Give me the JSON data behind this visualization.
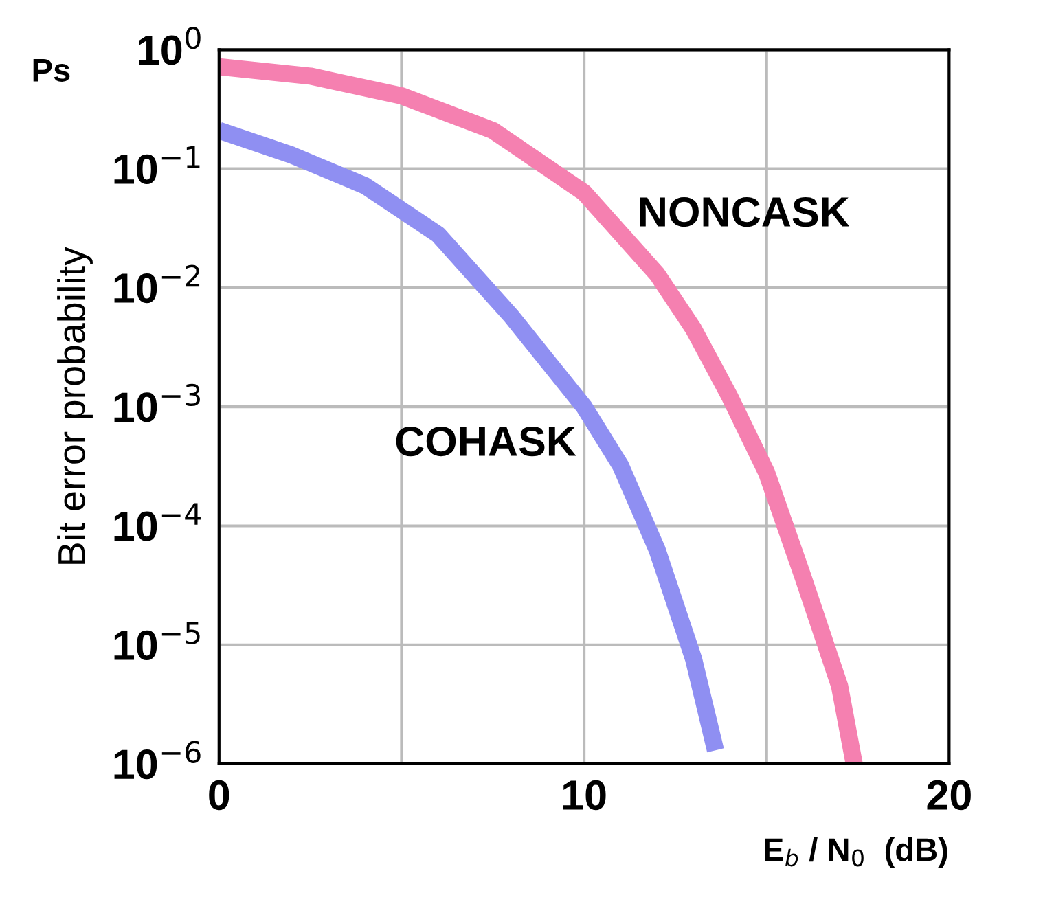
{
  "chart_data": {
    "type": "line",
    "xlabel": "E$_{b}$ / N$_{0}$  (dB)",
    "ylabel": "Bit error probability",
    "annotations": [
      "Ps"
    ],
    "log": "y",
    "grid": true,
    "line_style": "solid",
    "marker": "none",
    "xlim": [
      0,
      20
    ],
    "xticks": [
      0,
      {
        "value": 5,
        "label": null
      },
      10,
      {
        "value": 15,
        "label": null
      },
      20
    ],
    "ylim": [
      1e-06,
      1
    ],
    "yticks": [
      {
        "value": 1,
        "label": "10$^{0}$"
      },
      {
        "value": 0.1,
        "label": "10$^{−1}$"
      },
      {
        "value": 0.01,
        "label": "10$^{−2}$"
      },
      {
        "value": 0.001,
        "label": "10$^{−3}$"
      },
      {
        "value": 0.0001,
        "label": "10$^{−4}$"
      },
      {
        "value": 1e-05,
        "label": "10$^{−5}$"
      },
      {
        "value": 1e-06,
        "label": "10$^{−6}$"
      }
    ],
    "series": [
      {
        "name": "NONCASK",
        "color": "#f580b0",
        "x": [
          0,
          2.5,
          5,
          7.5,
          10,
          12,
          13,
          14,
          15,
          16,
          17,
          17.4
        ],
        "values": [
          0.72,
          0.6,
          0.41,
          0.21,
          0.063,
          0.013,
          0.0045,
          0.0012,
          0.00028,
          3.7e-05,
          4.5e-06,
          1e-06
        ]
      },
      {
        "name": "COHASK",
        "color": "#8f8ff2",
        "x": [
          0,
          2,
          4,
          6,
          8,
          10,
          11,
          12,
          13,
          13.6
        ],
        "values": [
          0.21,
          0.13,
          0.072,
          0.028,
          0.0058,
          0.001,
          0.00032,
          6.3e-05,
          7.6e-06,
          1.3e-06
        ]
      }
    ]
  }
}
